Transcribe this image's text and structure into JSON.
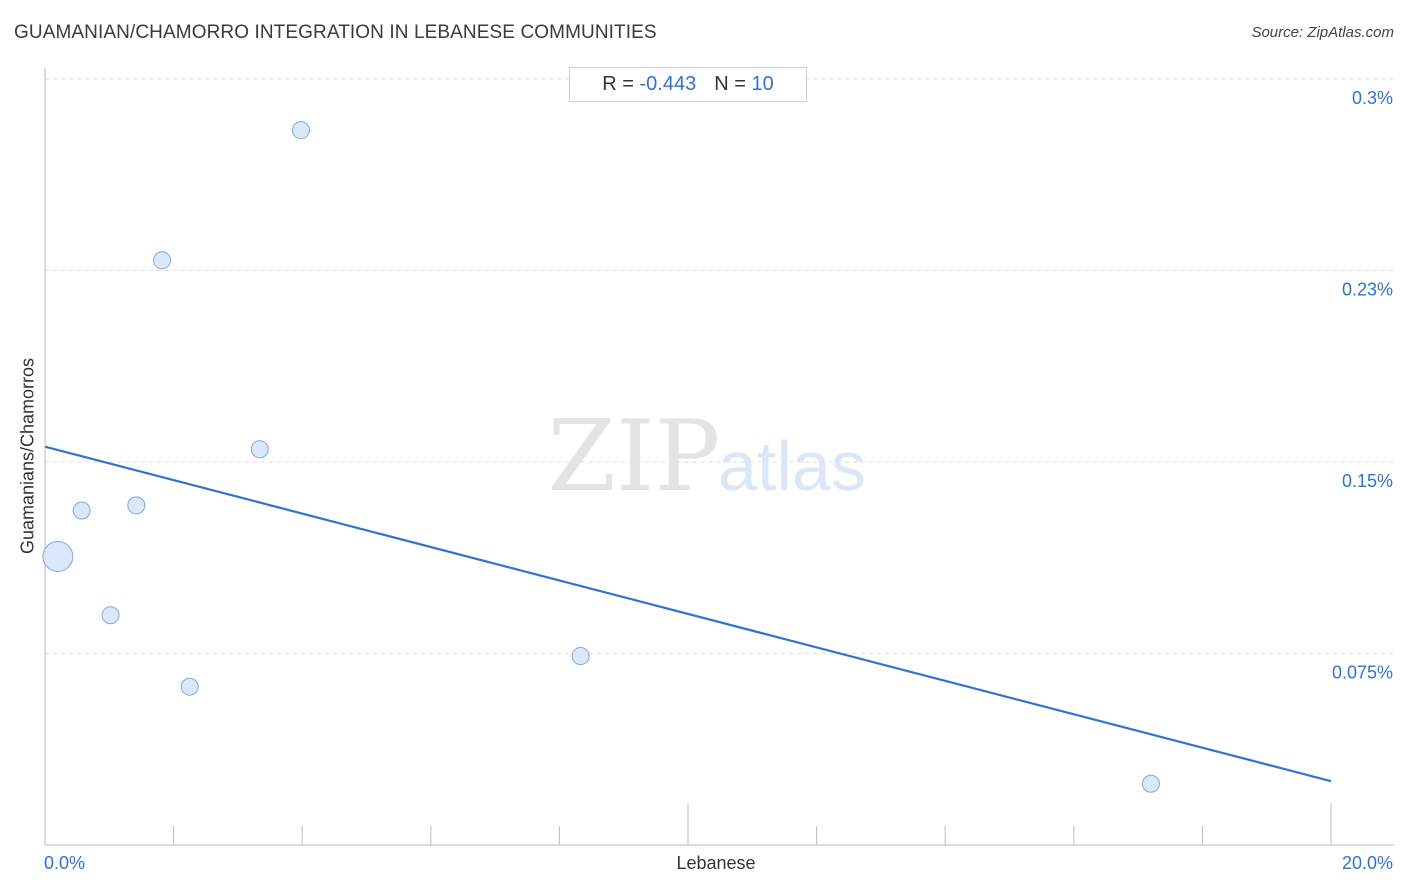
{
  "title": "GUAMANIAN/CHAMORRO INTEGRATION IN LEBANESE COMMUNITIES",
  "source": "Source: ZipAtlas.com",
  "stats": {
    "r_label": "R =",
    "r_value": "-0.443",
    "n_label": "N =",
    "n_value": "10"
  },
  "watermark": {
    "zip": "ZIP",
    "atlas": "atlas"
  },
  "colors": {
    "accent": "#2f73d3",
    "point_fill": "#d6e5f9",
    "point_stroke": "#7da9e3",
    "grid": "#dddddd"
  },
  "chart_data": {
    "type": "scatter",
    "xlabel": "Lebanese",
    "ylabel": "Guamanians/Chamorros",
    "xlim": [
      0,
      20
    ],
    "ylim": [
      0,
      0.3
    ],
    "x_tick_labels": [
      "0.0%",
      "20.0%"
    ],
    "y_ticks": [
      {
        "value": 0.3,
        "label": "0.3%"
      },
      {
        "value": 0.225,
        "label": "0.23%"
      },
      {
        "value": 0.15,
        "label": "0.15%"
      },
      {
        "value": 0.075,
        "label": "0.075%"
      }
    ],
    "grid": true,
    "points": [
      {
        "x": 0.2,
        "y": 0.113,
        "size": 3
      },
      {
        "x": 0.57,
        "y": 0.131,
        "size": 1
      },
      {
        "x": 1.02,
        "y": 0.09,
        "size": 1
      },
      {
        "x": 1.42,
        "y": 0.133,
        "size": 1
      },
      {
        "x": 1.82,
        "y": 0.229,
        "size": 1
      },
      {
        "x": 2.25,
        "y": 0.062,
        "size": 1
      },
      {
        "x": 3.34,
        "y": 0.155,
        "size": 1
      },
      {
        "x": 3.98,
        "y": 0.28,
        "size": 1
      },
      {
        "x": 8.33,
        "y": 0.074,
        "size": 1
      },
      {
        "x": 17.2,
        "y": 0.024,
        "size": 1
      }
    ],
    "trendline": {
      "x": [
        0,
        20
      ],
      "y": [
        0.156,
        0.025
      ]
    }
  }
}
